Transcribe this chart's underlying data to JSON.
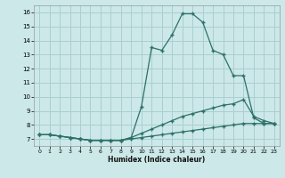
{
  "xlabel": "Humidex (Indice chaleur)",
  "bg_color": "#cce8e8",
  "grid_color": "#aacfcf",
  "line_color": "#2d7068",
  "xlim": [
    -0.5,
    23.5
  ],
  "ylim": [
    6.5,
    16.5
  ],
  "xticks": [
    0,
    1,
    2,
    3,
    4,
    5,
    6,
    7,
    8,
    9,
    10,
    11,
    12,
    13,
    14,
    15,
    16,
    17,
    18,
    19,
    20,
    21,
    22,
    23
  ],
  "yticks": [
    7,
    8,
    9,
    10,
    11,
    12,
    13,
    14,
    15,
    16
  ],
  "line1_x": [
    0,
    1,
    2,
    3,
    4,
    5,
    6,
    7,
    8,
    9,
    10,
    11,
    12,
    13,
    14,
    15,
    16,
    17,
    18,
    19,
    20,
    21,
    22,
    23
  ],
  "line1_y": [
    7.3,
    7.3,
    7.2,
    7.1,
    7.0,
    6.9,
    6.9,
    6.9,
    6.9,
    7.0,
    7.1,
    7.2,
    7.3,
    7.4,
    7.5,
    7.6,
    7.7,
    7.8,
    7.9,
    8.0,
    8.1,
    8.1,
    8.1,
    8.1
  ],
  "line2_x": [
    0,
    1,
    2,
    3,
    4,
    5,
    6,
    7,
    8,
    9,
    10,
    11,
    12,
    13,
    14,
    15,
    16,
    17,
    18,
    19,
    20,
    21,
    22,
    23
  ],
  "line2_y": [
    7.3,
    7.3,
    7.2,
    7.1,
    7.0,
    6.9,
    6.9,
    6.9,
    6.9,
    7.1,
    7.4,
    7.7,
    8.0,
    8.3,
    8.6,
    8.8,
    9.0,
    9.2,
    9.4,
    9.5,
    9.8,
    8.6,
    8.3,
    8.1
  ],
  "line3_x": [
    0,
    1,
    2,
    3,
    4,
    5,
    6,
    7,
    8,
    9,
    10,
    11,
    12,
    13,
    14,
    15,
    16,
    17,
    18,
    19,
    20,
    21,
    22,
    23
  ],
  "line3_y": [
    7.3,
    7.3,
    7.2,
    7.1,
    7.0,
    6.9,
    6.9,
    6.9,
    6.9,
    7.1,
    9.3,
    13.5,
    13.3,
    14.4,
    15.9,
    15.9,
    15.3,
    13.3,
    13.0,
    11.5,
    11.5,
    8.5,
    8.1,
    8.1
  ]
}
